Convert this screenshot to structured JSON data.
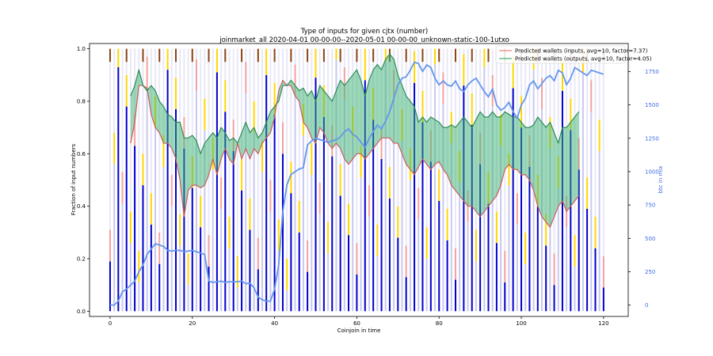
{
  "chart_data": {
    "type": "bar",
    "title": "Type of inputs for given cjtx (number)",
    "subtitle": "joinmarket_all 2020-04-01 00-00-00--2020-05-01 00-00-00_unknown-static-100-1utxo",
    "xlabel": "Coinjoin in time",
    "ylabel": "Fraction of input numbers",
    "y2label": "btc in mix",
    "xlim": [
      -5,
      126
    ],
    "ylim": [
      -0.02,
      1.02
    ],
    "y2lim": [
      -85,
      1960
    ],
    "x_ticks": [
      "0",
      "20",
      "40",
      "60",
      "80",
      "100",
      "120"
    ],
    "y_ticks": [
      "0.0",
      "0.2",
      "0.4",
      "0.6",
      "0.8",
      "1.0"
    ],
    "y2_ticks": [
      "0",
      "250",
      "500",
      "750",
      "1000",
      "1250",
      "1500",
      "1750"
    ],
    "colors": {
      "bars": "#0000cd",
      "bars_light": "#c8c8f0",
      "stack_yellow": "#ffd700",
      "stack_pink": "#f4a0a0",
      "stack_brown": "#8b4513",
      "inputs_line": "#cd5c5c",
      "inputs_fill": "#ff0000",
      "outputs_line": "#2e8b57",
      "outputs_fill": "#3cb371",
      "btc_line": "#6495ed"
    },
    "legend": {
      "placement": "top-right",
      "entries": [
        "Predicted wallets (inputs, avg=10, factor=7.37)",
        "Predicted wallets (outputs, avg=10, factor=4.05)"
      ]
    },
    "series": [
      {
        "name": "Predicted wallets (inputs, avg=10, factor=7.37)",
        "x": [
          5,
          6,
          7,
          8,
          9,
          10,
          11,
          12,
          13,
          14,
          15,
          16,
          17,
          18,
          19,
          20,
          21,
          22,
          23,
          24,
          25,
          26,
          27,
          28,
          29,
          30,
          31,
          32,
          33,
          34,
          35,
          36,
          37,
          38,
          39,
          40,
          41,
          42,
          43,
          44,
          45,
          46,
          47,
          48,
          49,
          50,
          51,
          52,
          53,
          54,
          55,
          56,
          57,
          58,
          59,
          60,
          61,
          62,
          63,
          64,
          65,
          66,
          67,
          68,
          69,
          70,
          71,
          72,
          73,
          74,
          75,
          76,
          77,
          78,
          79,
          80,
          81,
          82,
          83,
          84,
          85,
          86,
          87,
          88,
          89,
          90,
          91,
          92,
          93,
          94,
          95,
          96,
          97,
          98,
          99,
          100,
          101,
          102,
          103,
          104,
          105,
          106,
          107,
          108,
          109,
          110,
          111,
          112,
          113,
          114
        ],
        "values": [
          0.64,
          0.72,
          0.86,
          0.86,
          0.85,
          0.75,
          0.7,
          0.68,
          0.64,
          0.64,
          0.62,
          0.58,
          0.5,
          0.36,
          0.46,
          0.48,
          0.48,
          0.47,
          0.48,
          0.52,
          0.58,
          0.52,
          0.58,
          0.62,
          0.58,
          0.56,
          0.64,
          0.58,
          0.62,
          0.58,
          0.62,
          0.6,
          0.64,
          0.66,
          0.68,
          0.74,
          0.84,
          0.88,
          0.86,
          0.86,
          0.82,
          0.8,
          0.72,
          0.7,
          0.66,
          0.64,
          0.7,
          0.68,
          0.64,
          0.62,
          0.64,
          0.62,
          0.58,
          0.56,
          0.58,
          0.6,
          0.6,
          0.58,
          0.6,
          0.62,
          0.64,
          0.66,
          0.66,
          0.66,
          0.64,
          0.64,
          0.6,
          0.56,
          0.54,
          0.52,
          0.55,
          0.58,
          0.56,
          0.54,
          0.56,
          0.57,
          0.54,
          0.52,
          0.48,
          0.46,
          0.44,
          0.42,
          0.4,
          0.4,
          0.38,
          0.36,
          0.38,
          0.4,
          0.42,
          0.44,
          0.48,
          0.54,
          0.56,
          0.54,
          0.54,
          0.52,
          0.52,
          0.5,
          0.46,
          0.4,
          0.36,
          0.34,
          0.32,
          0.36,
          0.4,
          0.42,
          0.38,
          0.4,
          0.42,
          0.44
        ]
      },
      {
        "name": "Predicted wallets (outputs, avg=10, factor=4.05)",
        "x": [
          5,
          6,
          7,
          8,
          9,
          10,
          11,
          12,
          13,
          14,
          15,
          16,
          17,
          18,
          19,
          20,
          21,
          22,
          23,
          24,
          25,
          26,
          27,
          28,
          29,
          30,
          31,
          32,
          33,
          34,
          35,
          36,
          37,
          38,
          39,
          40,
          41,
          42,
          43,
          44,
          45,
          46,
          47,
          48,
          49,
          50,
          51,
          52,
          53,
          54,
          55,
          56,
          57,
          58,
          59,
          60,
          61,
          62,
          63,
          64,
          65,
          66,
          67,
          68,
          69,
          70,
          71,
          72,
          73,
          74,
          75,
          76,
          77,
          78,
          79,
          80,
          81,
          82,
          83,
          84,
          85,
          86,
          87,
          88,
          89,
          90,
          91,
          92,
          93,
          94,
          95,
          96,
          97,
          98,
          99,
          100,
          101,
          102,
          103,
          104,
          105,
          106,
          107,
          108,
          109,
          110,
          111,
          112,
          113,
          114
        ],
        "values": [
          0.82,
          0.86,
          0.92,
          0.86,
          0.84,
          0.86,
          0.84,
          0.8,
          0.78,
          0.75,
          0.74,
          0.72,
          0.72,
          0.66,
          0.66,
          0.67,
          0.65,
          0.6,
          0.64,
          0.66,
          0.68,
          0.66,
          0.7,
          0.68,
          0.65,
          0.66,
          0.64,
          0.68,
          0.72,
          0.68,
          0.7,
          0.66,
          0.68,
          0.72,
          0.76,
          0.78,
          0.8,
          0.86,
          0.86,
          0.88,
          0.86,
          0.84,
          0.85,
          0.82,
          0.84,
          0.8,
          0.86,
          0.84,
          0.82,
          0.8,
          0.84,
          0.88,
          0.86,
          0.88,
          0.9,
          0.92,
          0.88,
          0.82,
          0.88,
          0.92,
          0.94,
          0.92,
          0.96,
          0.98,
          0.96,
          0.9,
          0.86,
          0.82,
          0.8,
          0.78,
          0.72,
          0.74,
          0.72,
          0.74,
          0.73,
          0.72,
          0.7,
          0.7,
          0.71,
          0.7,
          0.72,
          0.74,
          0.72,
          0.7,
          0.73,
          0.76,
          0.74,
          0.74,
          0.76,
          0.74,
          0.74,
          0.76,
          0.75,
          0.74,
          0.74,
          0.72,
          0.7,
          0.7,
          0.71,
          0.74,
          0.72,
          0.7,
          0.72,
          0.68,
          0.64,
          0.7,
          0.7,
          0.72,
          0.74,
          0.76
        ]
      },
      {
        "name": "btc in mix",
        "axis": "right",
        "x": [
          0,
          1,
          2,
          3,
          4,
          5,
          6,
          7,
          8,
          9,
          10,
          11,
          12,
          13,
          14,
          15,
          16,
          17,
          18,
          19,
          20,
          21,
          22,
          23,
          24,
          25,
          26,
          27,
          28,
          29,
          30,
          31,
          32,
          33,
          34,
          35,
          36,
          37,
          38,
          39,
          40,
          41,
          42,
          43,
          44,
          45,
          46,
          47,
          48,
          49,
          50,
          51,
          52,
          53,
          54,
          55,
          56,
          57,
          58,
          59,
          60,
          61,
          62,
          63,
          64,
          65,
          66,
          67,
          68,
          69,
          70,
          71,
          72,
          73,
          74,
          75,
          76,
          77,
          78,
          79,
          80,
          81,
          82,
          83,
          84,
          85,
          86,
          87,
          88,
          89,
          90,
          91,
          92,
          93,
          94,
          95,
          96,
          97,
          98,
          99,
          100,
          101,
          102,
          103,
          104,
          105,
          106,
          107,
          108,
          109,
          110,
          111,
          112,
          113,
          114,
          115,
          116,
          117,
          118,
          119,
          120
        ],
        "values": [
          0,
          0,
          30,
          100,
          120,
          150,
          180,
          250,
          300,
          380,
          420,
          460,
          450,
          440,
          410,
          405,
          410,
          410,
          400,
          405,
          410,
          400,
          390,
          380,
          180,
          170,
          175,
          180,
          170,
          175,
          175,
          175,
          180,
          160,
          165,
          130,
          60,
          40,
          30,
          30,
          120,
          300,
          700,
          900,
          980,
          1000,
          1020,
          1030,
          1200,
          1230,
          1250,
          1240,
          1230,
          1220,
          1230,
          1240,
          1260,
          1300,
          1320,
          1280,
          1260,
          1220,
          1180,
          1250,
          1300,
          1350,
          1320,
          1380,
          1450,
          1550,
          1650,
          1700,
          1710,
          1760,
          1820,
          1810,
          1750,
          1800,
          1780,
          1700,
          1650,
          1680,
          1650,
          1640,
          1680,
          1620,
          1600,
          1650,
          1680,
          1700,
          1650,
          1600,
          1560,
          1620,
          1500,
          1460,
          1480,
          1520,
          1450,
          1400,
          1500,
          1550,
          1650,
          1680,
          1620,
          1660,
          1700,
          1720,
          1680,
          1760,
          1740,
          1650,
          1700,
          1780,
          1760,
          1740,
          1720,
          1760,
          1750,
          1740,
          1730
        ]
      }
    ]
  }
}
